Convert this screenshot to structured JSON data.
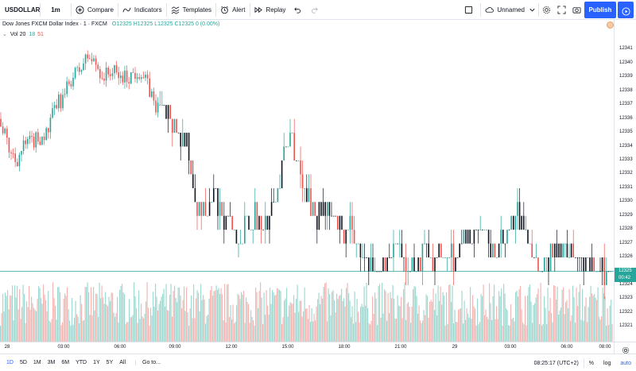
{
  "toolbar": {
    "symbol": "USDOLLAR",
    "interval": "1m",
    "compare": "Compare",
    "indicators": "Indicators",
    "templates": "Templates",
    "alert": "Alert",
    "replay": "Replay",
    "layout_name": "Unnamed",
    "publish": "Publish"
  },
  "legend": {
    "title": "Dow Jones FXCM Dollar Index · 1 · FXCM",
    "ohlc": "O12325 H12325 L12325 C12325 0 (0.00%)",
    "vol_label": "Vol",
    "vol_length": "20",
    "vol_value": "18",
    "vol_ma": "51"
  },
  "price_axis": {
    "ticks": [
      "12341",
      "12340",
      "12339",
      "12338",
      "12337",
      "12336",
      "12335",
      "12334",
      "12333",
      "12332",
      "12331",
      "12330",
      "12329",
      "12328",
      "12327",
      "12326",
      "12324",
      "12323",
      "12322",
      "12321"
    ],
    "current_price": "12325",
    "countdown": "00:42"
  },
  "time_axis": {
    "ticks": [
      "28",
      "03:00",
      "06:00",
      "09:00",
      "12:00",
      "15:00",
      "18:00",
      "21:00",
      "29",
      "03:00",
      "06:00",
      "08:00"
    ]
  },
  "bottombar": {
    "ranges": [
      "1D",
      "5D",
      "1M",
      "3M",
      "6M",
      "YTD",
      "1Y",
      "5Y",
      "All"
    ],
    "active_range": "1D",
    "goto": "Go to...",
    "clock": "08:25:17 (UTC+2)",
    "percent": "%",
    "log": "log",
    "auto": "auto"
  },
  "chart_data": {
    "type": "candlestick",
    "symbol": "USDOLLAR",
    "interval": "1m",
    "price_range": [
      12320.5,
      12342
    ],
    "anchors": [
      [
        0,
        12336
      ],
      [
        10,
        12334
      ],
      [
        20,
        12333
      ],
      [
        30,
        12334
      ],
      [
        45,
        12334.5
      ],
      [
        60,
        12335
      ],
      [
        70,
        12337
      ],
      [
        80,
        12337.5
      ],
      [
        90,
        12339
      ],
      [
        100,
        12339.5
      ],
      [
        110,
        12340.5
      ],
      [
        120,
        12340
      ],
      [
        130,
        12339
      ],
      [
        140,
        12339.5
      ],
      [
        150,
        12339
      ],
      [
        160,
        12339
      ],
      [
        175,
        12339.5
      ],
      [
        185,
        12338.5
      ],
      [
        195,
        12337
      ],
      [
        205,
        12336.5
      ],
      [
        215,
        12335.5
      ],
      [
        225,
        12335
      ],
      [
        235,
        12334
      ],
      [
        243,
        12331
      ],
      [
        250,
        12329
      ],
      [
        260,
        12329
      ],
      [
        270,
        12330
      ],
      [
        280,
        12329
      ],
      [
        290,
        12328
      ],
      [
        300,
        12327
      ],
      [
        310,
        12329
      ],
      [
        320,
        12329
      ],
      [
        330,
        12328
      ],
      [
        340,
        12329
      ],
      [
        350,
        12331
      ],
      [
        358,
        12333.5
      ],
      [
        365,
        12335
      ],
      [
        372,
        12333
      ],
      [
        380,
        12331
      ],
      [
        390,
        12330
      ],
      [
        400,
        12329
      ],
      [
        410,
        12330
      ],
      [
        420,
        12328
      ],
      [
        430,
        12328
      ],
      [
        440,
        12328
      ],
      [
        450,
        12327
      ],
      [
        460,
        12325
      ],
      [
        470,
        12325
      ],
      [
        480,
        12325.5
      ],
      [
        490,
        12326
      ],
      [
        500,
        12326.5
      ],
      [
        510,
        12325
      ],
      [
        520,
        12325.5
      ],
      [
        530,
        12326
      ],
      [
        540,
        12326.5
      ],
      [
        550,
        12326
      ],
      [
        560,
        12326
      ],
      [
        570,
        12326
      ],
      [
        580,
        12327
      ],
      [
        590,
        12327.5
      ],
      [
        600,
        12327.5
      ],
      [
        610,
        12327
      ],
      [
        620,
        12326.5
      ],
      [
        630,
        12327
      ],
      [
        640,
        12328
      ],
      [
        650,
        12329
      ],
      [
        660,
        12328
      ],
      [
        670,
        12326
      ],
      [
        680,
        12325.5
      ],
      [
        690,
        12326
      ],
      [
        700,
        12327
      ],
      [
        710,
        12327
      ],
      [
        720,
        12326
      ],
      [
        730,
        12325.5
      ],
      [
        740,
        12325
      ],
      [
        750,
        12325
      ],
      [
        770,
        12325
      ]
    ],
    "last_price": 12325
  }
}
